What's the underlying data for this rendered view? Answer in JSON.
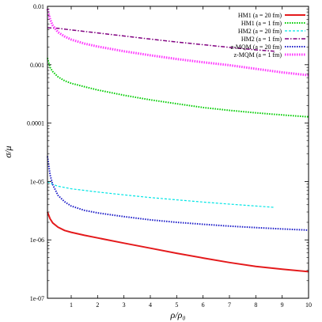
{
  "chart_data": {
    "type": "line",
    "xlabel": "ρ/ρ₀",
    "ylabel": "σ/μ",
    "xlim": [
      0.1,
      10
    ],
    "ylim": [
      1e-07,
      0.01
    ],
    "yscale": "log",
    "x_ticks": [
      {
        "v": 1,
        "label": "1"
      },
      {
        "v": 2,
        "label": "2"
      },
      {
        "v": 3,
        "label": "3"
      },
      {
        "v": 4,
        "label": "4"
      },
      {
        "v": 5,
        "label": "5"
      },
      {
        "v": 6,
        "label": "6"
      },
      {
        "v": 7,
        "label": "7"
      },
      {
        "v": 8,
        "label": "8"
      },
      {
        "v": 9,
        "label": "9"
      },
      {
        "v": 10,
        "label": "10"
      }
    ],
    "y_ticks": [
      {
        "v": 1e-07,
        "label": "1e-07"
      },
      {
        "v": 1e-06,
        "label": "1e-06"
      },
      {
        "v": 1e-05,
        "label": "1e-05"
      },
      {
        "v": 0.0001,
        "label": "0.0001"
      },
      {
        "v": 0.001,
        "label": "0.001"
      },
      {
        "v": 0.01,
        "label": "0.01"
      }
    ],
    "grid": false,
    "legend_position": "top-right",
    "series": [
      {
        "name": "HM1 (a = 20 fm)",
        "color": "#e41a1c",
        "dash": "solid",
        "width": 2,
        "x": [
          0.1,
          0.2,
          0.3,
          0.5,
          0.75,
          1,
          1.5,
          2,
          3,
          4,
          5,
          6,
          7,
          8,
          9,
          10
        ],
        "y": [
          3e-06,
          2.3e-06,
          1.95e-06,
          1.65e-06,
          1.45e-06,
          1.35e-06,
          1.2e-06,
          1.08e-06,
          8.8e-07,
          7.2e-07,
          5.9e-07,
          4.9e-07,
          4.1e-07,
          3.5e-07,
          3.15e-07,
          2.85e-07
        ]
      },
      {
        "name": "HM1 (a = 1 fm)",
        "color": "#00cc00",
        "dash": "dotted",
        "width": 2,
        "x": [
          0.1,
          0.2,
          0.3,
          0.5,
          0.75,
          1,
          1.5,
          2,
          3,
          4,
          5,
          6,
          7,
          8,
          9,
          10
        ],
        "y": [
          0.0013,
          0.0009,
          0.00076,
          0.00062,
          0.00053,
          0.00048,
          0.00042,
          0.00037,
          0.0003,
          0.00025,
          0.000215,
          0.000185,
          0.000165,
          0.00015,
          0.000138,
          0.000128
        ]
      },
      {
        "name": "HM2 (a = 20 fm)",
        "color": "#00e5e5",
        "dash": "dashed",
        "width": 1.2,
        "x": [
          0.1,
          0.3,
          0.5,
          1,
          2,
          3,
          4,
          5,
          6,
          7,
          8,
          8.7
        ],
        "y": [
          9.8e-06,
          8.9e-06,
          8.3e-06,
          7.5e-06,
          6.6e-06,
          5.9e-06,
          5.3e-06,
          4.85e-06,
          4.45e-06,
          4.1e-06,
          3.8e-06,
          3.6e-06
        ]
      },
      {
        "name": "HM2 (a = 1 fm)",
        "color": "#800080",
        "dash": "dashdot",
        "width": 1.5,
        "x": [
          0.1,
          0.5,
          1,
          2,
          3,
          4,
          5,
          6,
          7,
          8,
          8.7
        ],
        "y": [
          0.0043,
          0.0042,
          0.00395,
          0.0035,
          0.0031,
          0.00275,
          0.00245,
          0.0022,
          0.00198,
          0.0018,
          0.0017
        ]
      },
      {
        "name": "z-MQM (a = 20 fm)",
        "color": "#1c1cc8",
        "dash": "dotted",
        "width": 2,
        "x": [
          0.1,
          0.2,
          0.3,
          0.5,
          0.75,
          1,
          1.5,
          2,
          3,
          4,
          5,
          6,
          7,
          8,
          9,
          10
        ],
        "y": [
          2.7e-05,
          1.3e-05,
          8.8e-06,
          5.8e-06,
          4.5e-06,
          3.8e-06,
          3.2e-06,
          2.9e-06,
          2.5e-06,
          2.2e-06,
          2e-06,
          1.85e-06,
          1.72e-06,
          1.62e-06,
          1.54e-06,
          1.47e-06
        ]
      },
      {
        "name": "z-MQM (a = 1 fm)",
        "color": "#ff33ff",
        "dash": "dotted",
        "width": 3,
        "x": [
          0.1,
          0.2,
          0.3,
          0.5,
          0.75,
          1,
          1.5,
          2,
          3,
          4,
          5,
          6,
          7,
          8,
          9,
          10
        ],
        "y": [
          0.009,
          0.006,
          0.0047,
          0.0036,
          0.00305,
          0.0027,
          0.0023,
          0.00205,
          0.0017,
          0.00145,
          0.00125,
          0.0011,
          0.00098,
          0.00085,
          0.00074,
          0.00066
        ]
      }
    ]
  }
}
